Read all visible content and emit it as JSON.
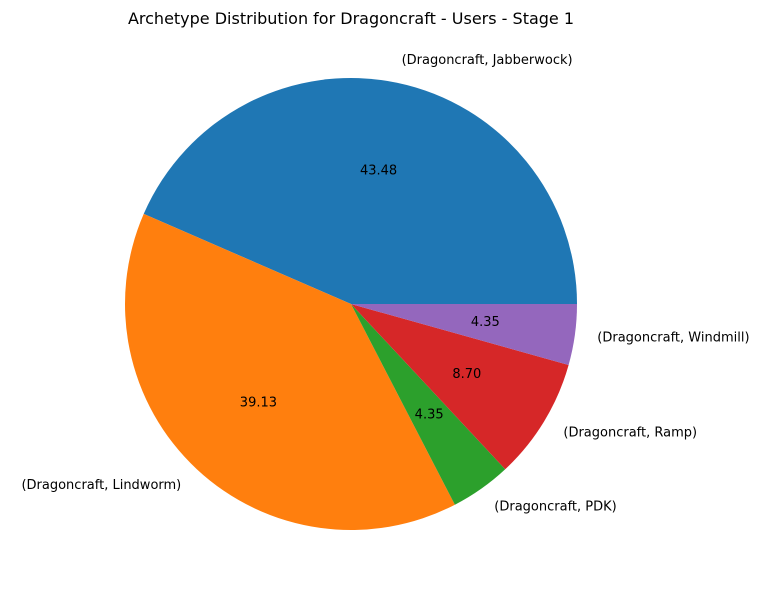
{
  "chart_data": {
    "type": "pie",
    "title": "Archetype Distribution for Dragoncraft - Users - Stage 1",
    "start_angle_deg": 0,
    "direction": "counterclockwise",
    "slices": [
      {
        "label": "(Dragoncraft, Jabberwock)",
        "value": 43.48,
        "pct_text": "43.48",
        "color": "#1f77b4"
      },
      {
        "label": "(Dragoncraft, Lindworm)",
        "value": 39.13,
        "pct_text": "39.13",
        "color": "#ff7f0e"
      },
      {
        "label": "(Dragoncraft, PDK)",
        "value": 4.35,
        "pct_text": "4.35",
        "color": "#2ca02c"
      },
      {
        "label": "(Dragoncraft, Ramp)",
        "value": 8.7,
        "pct_text": "8.70",
        "color": "#d62728"
      },
      {
        "label": "(Dragoncraft, Windmill)",
        "value": 4.35,
        "pct_text": "4.35",
        "color": "#9467bd"
      }
    ]
  }
}
